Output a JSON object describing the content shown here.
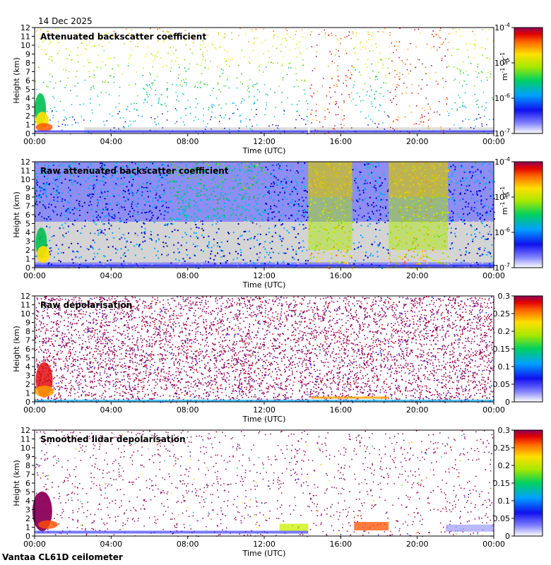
{
  "figure": {
    "date": "14 Dec 2025",
    "footer": "Vantaa CL61D ceilometer",
    "colors": {
      "low_gray": "#d4d4d4",
      "background": "#ffffff"
    }
  },
  "chart_data": [
    {
      "type": "heatmap",
      "title": "Attenuated backscatter coefficient",
      "xlabel": "Time (UTC)",
      "ylabel": "Height (km)",
      "x_ticks": [
        "00:00",
        "04:00",
        "08:00",
        "12:00",
        "16:00",
        "20:00",
        "00:00"
      ],
      "y_ticks": [
        "0",
        "1",
        "2",
        "3",
        "4",
        "5",
        "6",
        "7",
        "8",
        "9",
        "10",
        "11",
        "12"
      ],
      "xlim_hours": [
        0,
        24
      ],
      "ylim_km": [
        0,
        12
      ],
      "colorbar": {
        "scale": "log",
        "range": [
          1e-07,
          0.0001
        ],
        "tick_labels": [
          {
            "base": "10",
            "exp": "-4"
          },
          {
            "base": "10",
            "exp": "-5"
          },
          {
            "base": "10",
            "exp": "-6"
          },
          {
            "base": "10",
            "exp": "-7"
          }
        ],
        "unit": {
          "m": "m",
          "m_exp": "-1",
          "sr": " sr",
          "sr_exp": "-1"
        }
      }
    },
    {
      "type": "heatmap",
      "title": "Raw attenuated backscatter coefficient",
      "xlabel": "Time (UTC)",
      "ylabel": "Height (km)",
      "x_ticks": [
        "00:00",
        "04:00",
        "08:00",
        "12:00",
        "16:00",
        "20:00",
        "00:00"
      ],
      "y_ticks": [
        "0",
        "1",
        "2",
        "3",
        "4",
        "5",
        "6",
        "7",
        "8",
        "9",
        "10",
        "11",
        "12"
      ],
      "xlim_hours": [
        0,
        24
      ],
      "ylim_km": [
        0,
        12
      ],
      "colorbar": {
        "scale": "log",
        "range": [
          1e-07,
          0.0001
        ],
        "tick_labels": [
          {
            "base": "10",
            "exp": "-4"
          },
          {
            "base": "10",
            "exp": "-5"
          },
          {
            "base": "10",
            "exp": "-6"
          },
          {
            "base": "10",
            "exp": "-7"
          }
        ],
        "unit": {
          "m": "m",
          "m_exp": "-1",
          "sr": " sr",
          "sr_exp": "-1"
        }
      }
    },
    {
      "type": "heatmap",
      "title": "Raw depolarisation",
      "xlabel": "Time (UTC)",
      "ylabel": "Height (km)",
      "x_ticks": [
        "00:00",
        "04:00",
        "08:00",
        "12:00",
        "16:00",
        "20:00",
        "00:00"
      ],
      "y_ticks": [
        "0",
        "1",
        "2",
        "3",
        "4",
        "5",
        "6",
        "7",
        "8",
        "9",
        "10",
        "11",
        "12"
      ],
      "xlim_hours": [
        0,
        24
      ],
      "ylim_km": [
        0,
        12
      ],
      "colorbar": {
        "scale": "linear",
        "range": [
          0,
          0.3
        ],
        "tick_labels": [
          "0.3",
          "0.25",
          "0.2",
          "0.15",
          "0.1",
          "0.05",
          "0"
        ],
        "unit": null
      }
    },
    {
      "type": "heatmap",
      "title": "Smoothed lidar depolarisation",
      "xlabel": "Time (UTC)",
      "ylabel": "Height (km)",
      "x_ticks": [
        "00:00",
        "04:00",
        "08:00",
        "12:00",
        "16:00",
        "20:00",
        "00:00"
      ],
      "y_ticks": [
        "0",
        "1",
        "2",
        "3",
        "4",
        "5",
        "6",
        "7",
        "8",
        "9",
        "10",
        "11",
        "12"
      ],
      "xlim_hours": [
        0,
        24
      ],
      "ylim_km": [
        0,
        12
      ],
      "colorbar": {
        "scale": "linear",
        "range": [
          0,
          0.3
        ],
        "tick_labels": [
          "0.3",
          "0.25",
          "0.2",
          "0.15",
          "0.1",
          "0.05",
          "0"
        ],
        "unit": null
      }
    }
  ]
}
